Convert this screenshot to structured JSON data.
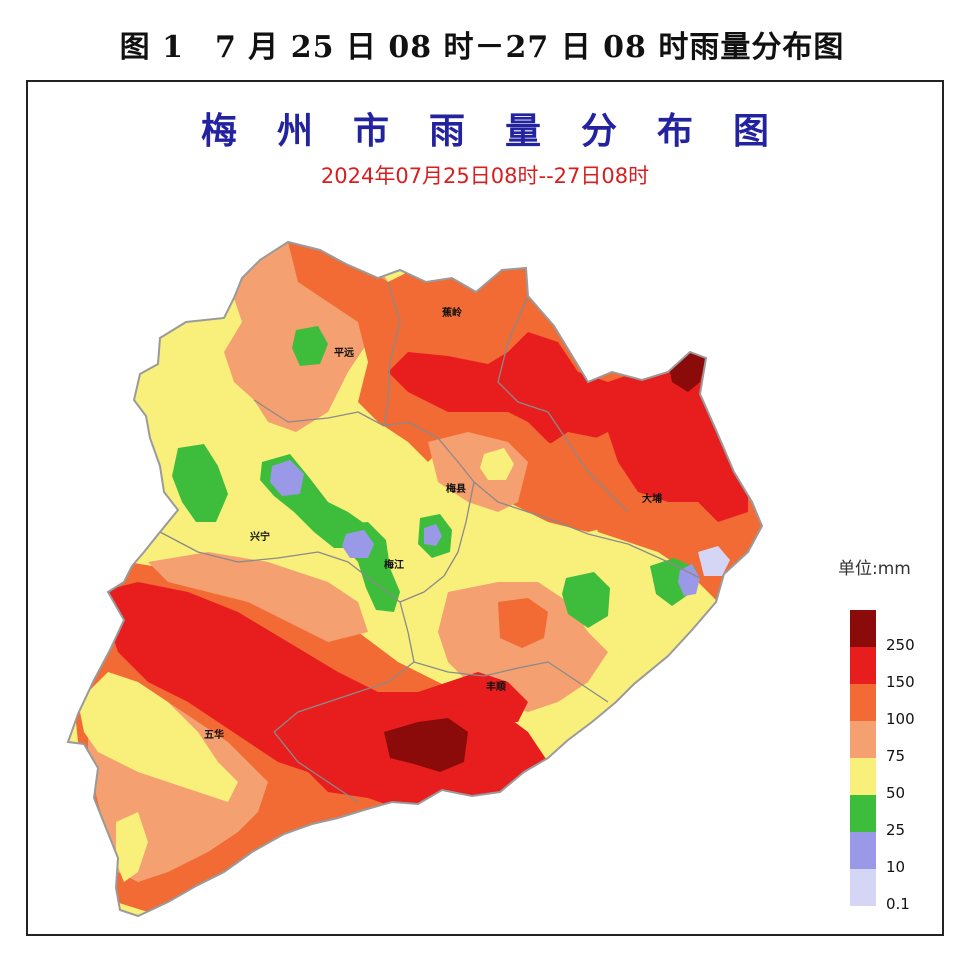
{
  "caption": "图 1　7 月 25 日 08 时－27 日 08 时雨量分布图",
  "map": {
    "title": "梅州市雨量分布图",
    "subtitle": "2024年07月25日08时--27日08时",
    "places": [
      "蕉岭",
      "平远",
      "梅县",
      "大埔",
      "兴宁",
      "梅江",
      "丰顺",
      "五华"
    ]
  },
  "legend": {
    "unit": "单位:mm",
    "thresholds": [
      "250",
      "150",
      "100",
      "75",
      "50",
      "25",
      "10",
      "0.1"
    ],
    "colors": [
      "#8b0a0a",
      "#e81e1e",
      "#f26b35",
      "#f4a070",
      "#f8f07a",
      "#3ebd3c",
      "#9999e8",
      "#d5d5f5"
    ]
  }
}
